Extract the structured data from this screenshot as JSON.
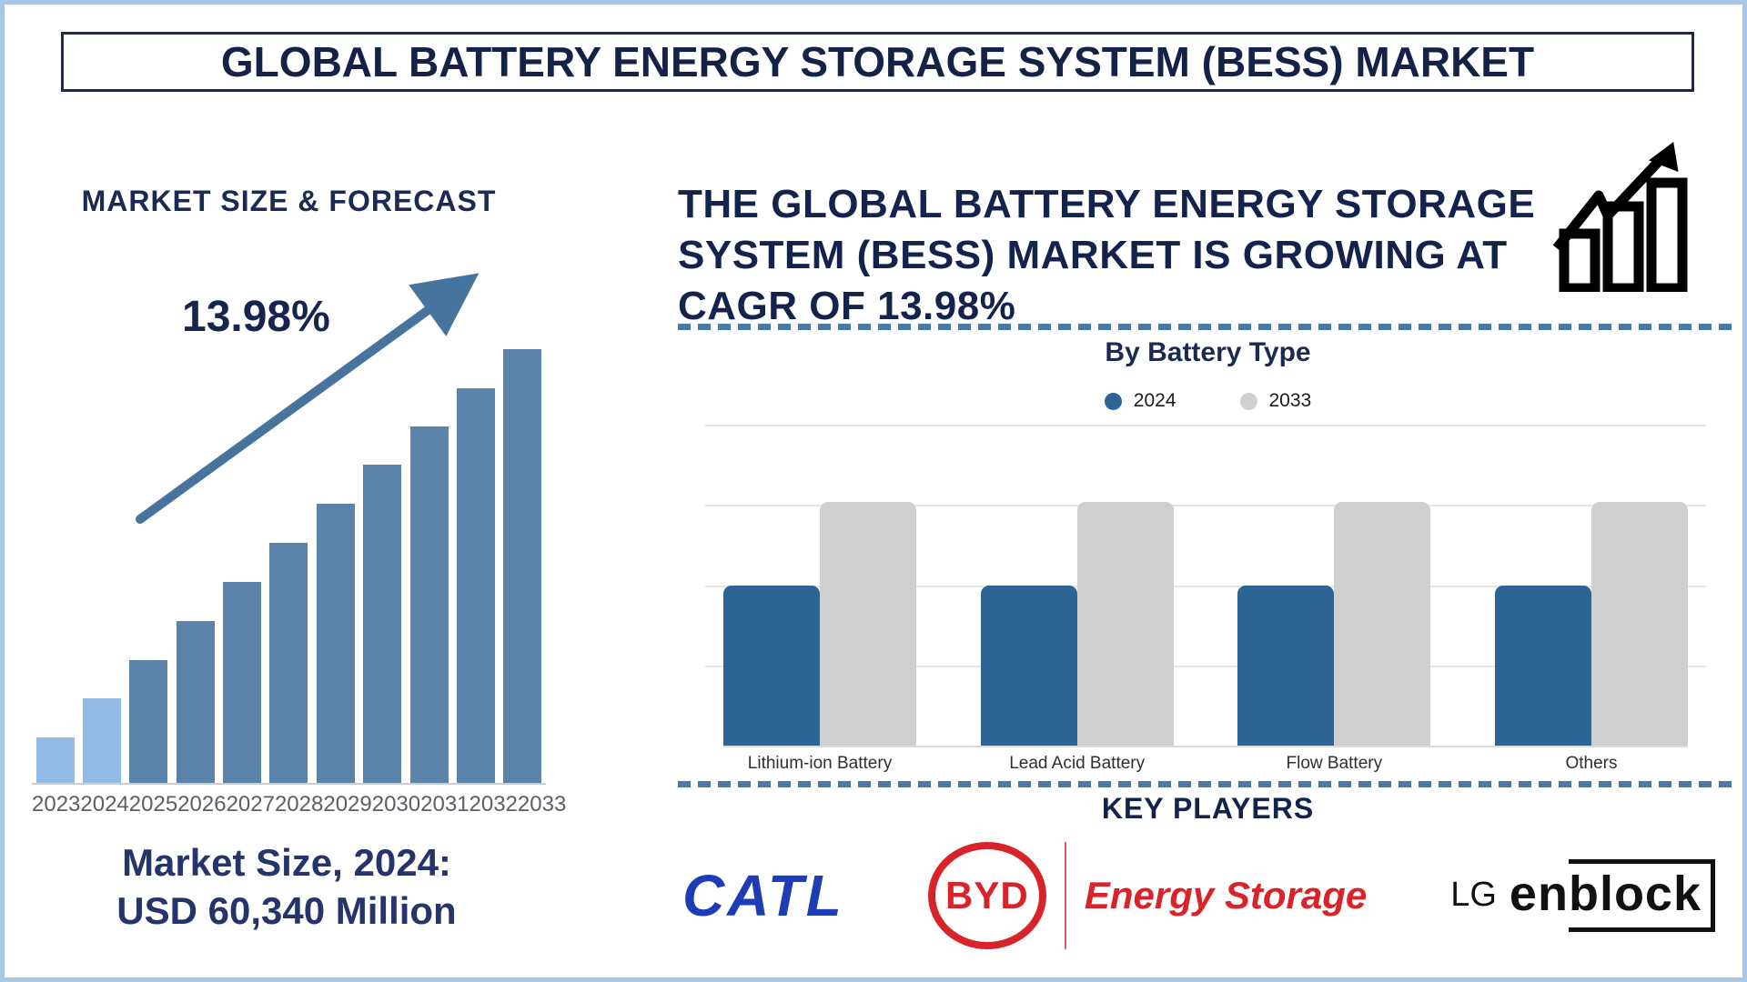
{
  "page": {
    "title": "GLOBAL BATTERY ENERGY STORAGE SYSTEM (BESS) MARKET",
    "frame_color": "#aac7e6"
  },
  "left_panel": {
    "heading": "MARKET SIZE & FORECAST",
    "cagr_annotation": "13.98%",
    "market_size_label_line1": "Market Size, 2024:",
    "market_size_label_line2": "USD 60,340 Million"
  },
  "right_panel": {
    "headline_lines": [
      "THE GLOBAL BATTERY ENERGY STORAGE",
      "SYSTEM (BESS) MARKET IS GROWING AT",
      "CAGR OF 13.98%"
    ],
    "battery_section_title": "By Battery Type",
    "legend": [
      {
        "label": "2024",
        "color": "#2d6496"
      },
      {
        "label": "2033",
        "color": "#cfcfcf"
      }
    ],
    "key_players_title": "KEY PLAYERS",
    "players": {
      "catl": {
        "name": "CATL",
        "color": "#1e3cb5"
      },
      "byd": {
        "badge": "BYD",
        "label": "Energy Storage",
        "color": "#d9232a"
      },
      "lg": {
        "prefix": "LG",
        "word_start": "en",
        "word_boxed": "block",
        "color": "#111111"
      }
    }
  },
  "chart_data": [
    {
      "type": "bar",
      "title": "MARKET SIZE & FORECAST",
      "categories": [
        "2023",
        "2024",
        "2025",
        "2026",
        "2027",
        "2028",
        "2029",
        "2030",
        "2031",
        "2032",
        "2033"
      ],
      "values_relative": [
        10.5,
        19.5,
        28.3,
        37.3,
        46.3,
        55.3,
        64.4,
        73.4,
        82.2,
        91.0,
        100
      ],
      "known_point": {
        "year": "2024",
        "value": "USD 60,340 Million"
      },
      "cagr": "13.98%",
      "highlight_first_n": 2,
      "bar_color_highlight": "#93bbe5",
      "bar_color_default": "#5c83a9",
      "trend_arrow": true,
      "xlabel": "",
      "ylabel": "",
      "y_axis_shown": false
    },
    {
      "type": "grouped_bar",
      "title": "By Battery Type",
      "categories": [
        "Lithium-ion Battery",
        "Lead Acid Battery",
        "Flow Battery",
        "Others"
      ],
      "series": [
        {
          "name": "2024",
          "color": "#2d6496",
          "values": [
            50,
            50,
            50,
            50
          ]
        },
        {
          "name": "2033",
          "color": "#cfcfcf",
          "values": [
            76,
            76,
            76,
            76
          ]
        }
      ],
      "ylim": [
        0,
        100
      ],
      "grid": true,
      "legend_position": "top",
      "y_axis_shown": false
    }
  ],
  "colors": {
    "navy_text": "#16254e",
    "arrow": "#47749d",
    "dashed_divider": "#4a7aa8",
    "gridline": "#e6e6e6",
    "year_label": "#5b6066",
    "category_label": "#2f2f2f"
  }
}
